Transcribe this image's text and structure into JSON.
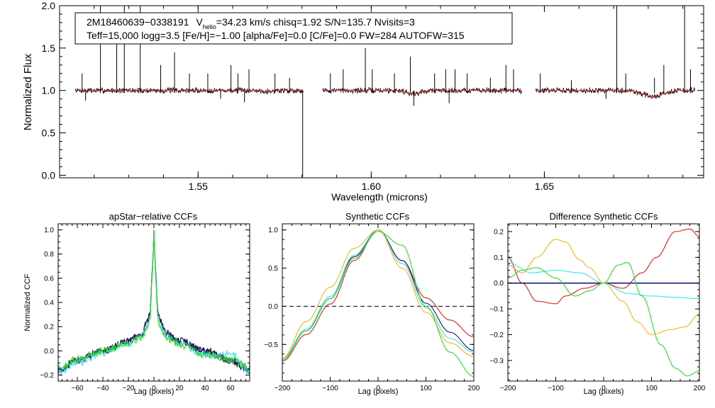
{
  "colors": {
    "axis": "#000000",
    "black": "#000000",
    "red": "#d62020",
    "navy": "#1a1a7a",
    "cyan": "#3fe0e8",
    "green": "#2ed62e",
    "orange": "#f2b41c"
  },
  "chart_data": [
    {
      "id": "spectrum",
      "type": "line",
      "title": "",
      "xlabel": "Wavelength (microns)",
      "ylabel": "Normalized Flux",
      "xlim": [
        1.51,
        1.696
      ],
      "ylim": [
        -0.03,
        2.0
      ],
      "xticks": [
        1.55,
        1.6,
        1.65
      ],
      "xtick_labels": [
        "1.55",
        "1.60",
        "1.65"
      ],
      "yticks": [
        0.0,
        0.5,
        1.0,
        1.5,
        2.0
      ],
      "ytick_labels": [
        "0.0",
        "0.5",
        "1.0",
        "1.5",
        "2.0"
      ],
      "legend": {
        "line1": {
          "star": "2M18460639−0338191",
          "v": "V",
          "vsub": "helio",
          "rest": "=34.23 km/s  chisq=1.92  S/N=135.7  Nvisits=3"
        },
        "line2": "Teff=15,000 logg=3.5 [Fe/H]=−1.00 [alpha/Fe]=0.0 [C/Fe]=0.0 FW=284 AUTOFW=315"
      },
      "segments": [
        {
          "x0": 1.5145,
          "x1": 1.5805,
          "base": 1.0,
          "dips": [
            {
              "c": 1.5705,
              "d": 0.01,
              "w": 0.002
            }
          ]
        },
        {
          "x0": 1.586,
          "x1": 1.6435,
          "base": 1.0,
          "dips": [
            {
              "c": 1.6123,
              "d": 0.04,
              "w": 0.0025
            }
          ]
        },
        {
          "x0": 1.6475,
          "x1": 1.6935,
          "base": 1.0,
          "dips": [
            {
              "c": 1.6812,
              "d": 0.07,
              "w": 0.004
            }
          ]
        }
      ],
      "spikes": [
        {
          "x": 1.5165,
          "y": 1.2
        },
        {
          "x": 1.5218,
          "y": 2.0
        },
        {
          "x": 1.5265,
          "y": 1.8
        },
        {
          "x": 1.5287,
          "y": 2.0
        },
        {
          "x": 1.5333,
          "y": 2.0
        },
        {
          "x": 1.5392,
          "y": 1.3
        },
        {
          "x": 1.5432,
          "y": 1.45
        },
        {
          "x": 1.5475,
          "y": 1.2
        },
        {
          "x": 1.5528,
          "y": 1.2
        },
        {
          "x": 1.5595,
          "y": 1.3
        },
        {
          "x": 1.5615,
          "y": 1.2
        },
        {
          "x": 1.5647,
          "y": 1.25
        },
        {
          "x": 1.5722,
          "y": 1.2
        },
        {
          "x": 1.5764,
          "y": 1.15
        },
        {
          "x": 1.5882,
          "y": 1.2
        },
        {
          "x": 1.5919,
          "y": 1.25
        },
        {
          "x": 1.5983,
          "y": 1.5
        },
        {
          "x": 1.6003,
          "y": 1.25
        },
        {
          "x": 1.6067,
          "y": 1.2
        },
        {
          "x": 1.6113,
          "y": 1.4
        },
        {
          "x": 1.6183,
          "y": 1.2
        },
        {
          "x": 1.6215,
          "y": 1.25
        },
        {
          "x": 1.6242,
          "y": 1.25
        },
        {
          "x": 1.6277,
          "y": 1.2
        },
        {
          "x": 1.6344,
          "y": 1.15
        },
        {
          "x": 1.6389,
          "y": 1.3
        },
        {
          "x": 1.6411,
          "y": 1.25
        },
        {
          "x": 1.6488,
          "y": 1.2
        },
        {
          "x": 1.6578,
          "y": 1.12
        },
        {
          "x": 1.6709,
          "y": 2.0
        },
        {
          "x": 1.6735,
          "y": 1.2
        },
        {
          "x": 1.6818,
          "y": 1.15
        },
        {
          "x": 1.6845,
          "y": 1.3
        },
        {
          "x": 1.6905,
          "y": 2.0
        },
        {
          "x": 1.6922,
          "y": 1.25
        }
      ],
      "absorptions": [
        {
          "x": 1.5175,
          "y": 0.88
        },
        {
          "x": 1.5565,
          "y": 0.9
        },
        {
          "x": 1.5634,
          "y": 0.86
        },
        {
          "x": 1.5802,
          "y": -0.02
        },
        {
          "x": 1.6123,
          "y": 0.82
        },
        {
          "x": 1.6225,
          "y": 0.85
        },
        {
          "x": 1.6678,
          "y": 0.9
        }
      ]
    },
    {
      "id": "apstar",
      "type": "line",
      "title": "apStar−relative CCFs",
      "xlabel": "Lag (pixels)",
      "ylabel": "Normalized CCF",
      "xlim": [
        -75,
        75
      ],
      "ylim": [
        -0.25,
        1.05
      ],
      "xticks": [
        -60,
        -40,
        -20,
        0,
        20,
        40,
        60
      ],
      "xtick_labels": [
        "−60",
        "−40",
        "−20",
        "0",
        "20",
        "40",
        "60"
      ],
      "yticks": [
        -0.2,
        0.0,
        0.2,
        0.4,
        0.6,
        0.8,
        1.0
      ],
      "ytick_labels": [
        "−0.2",
        "0.0",
        "0.2",
        "0.4",
        "0.6",
        "0.8",
        "1.0"
      ],
      "series": [
        {
          "name": "black",
          "color": "#000000",
          "x": [
            -75,
            -60,
            -40,
            -20,
            -10,
            -5,
            -3,
            -1,
            0,
            1,
            3,
            5,
            10,
            20,
            40,
            60,
            75
          ],
          "y": [
            -0.16,
            -0.08,
            0.0,
            0.08,
            0.14,
            0.24,
            0.34,
            0.7,
            1.0,
            0.7,
            0.34,
            0.24,
            0.14,
            0.08,
            0.0,
            -0.08,
            -0.16
          ]
        },
        {
          "name": "navy",
          "color": "#1a1a7a",
          "x": [
            -75,
            -60,
            -40,
            -20,
            -10,
            -5,
            -3,
            -1,
            0,
            1,
            3,
            5,
            10,
            20,
            40,
            60,
            75
          ],
          "y": [
            -0.16,
            -0.08,
            0.0,
            0.08,
            0.14,
            0.24,
            0.34,
            0.7,
            1.0,
            0.7,
            0.34,
            0.24,
            0.14,
            0.08,
            0.0,
            -0.08,
            -0.16
          ]
        },
        {
          "name": "cyan",
          "color": "#3fe0e8",
          "x": [
            -75,
            -60,
            -40,
            -20,
            -10,
            -5,
            -3,
            -1,
            0,
            1,
            3,
            5,
            10,
            20,
            40,
            60,
            75
          ],
          "y": [
            -0.18,
            -0.1,
            -0.02,
            0.06,
            0.12,
            0.2,
            0.3,
            0.68,
            1.0,
            0.68,
            0.3,
            0.2,
            0.12,
            0.06,
            -0.04,
            -0.02,
            -0.18
          ]
        },
        {
          "name": "green",
          "color": "#2ed62e",
          "x": [
            -75,
            -60,
            -40,
            -20,
            -10,
            -5,
            -3,
            -1,
            0,
            1,
            3,
            5,
            10,
            20,
            40,
            60,
            75
          ],
          "y": [
            -0.14,
            -0.07,
            0.0,
            0.06,
            0.11,
            0.18,
            0.28,
            0.66,
            1.0,
            0.66,
            0.28,
            0.18,
            0.1,
            0.05,
            -0.03,
            -0.07,
            -0.13
          ]
        }
      ]
    },
    {
      "id": "synthetic",
      "type": "line",
      "title": "Synthetic CCFs",
      "xlabel": "Lag (pixels)",
      "ylabel": "",
      "xlim": [
        -200,
        200
      ],
      "ylim": [
        -0.98,
        1.08
      ],
      "xticks": [
        -200,
        -100,
        0,
        100,
        200
      ],
      "xtick_labels": [
        "−200",
        "−100",
        "0",
        "100",
        "200"
      ],
      "yticks": [
        -0.5,
        0.0,
        0.5,
        1.0
      ],
      "ytick_labels": [
        "−0.5",
        "0.0",
        "0.5",
        "1.0"
      ],
      "zero_line": true,
      "series": [
        {
          "name": "red",
          "color": "#d62020",
          "x": [
            -200,
            -150,
            -100,
            -50,
            0,
            50,
            100,
            150,
            200
          ],
          "y": [
            -0.72,
            -0.37,
            0.03,
            0.6,
            1.0,
            0.6,
            0.11,
            -0.18,
            -0.4
          ]
        },
        {
          "name": "navy",
          "color": "#1a1a7a",
          "x": [
            -200,
            -150,
            -100,
            -50,
            0,
            50,
            100,
            150,
            200
          ],
          "y": [
            -0.7,
            -0.32,
            0.1,
            0.65,
            1.0,
            0.6,
            0.04,
            -0.34,
            -0.58
          ]
        },
        {
          "name": "cyan",
          "color": "#3fe0e8",
          "x": [
            -200,
            -150,
            -100,
            -50,
            0,
            50,
            100,
            150,
            200
          ],
          "y": [
            -0.68,
            -0.3,
            0.13,
            0.67,
            1.0,
            0.56,
            -0.02,
            -0.42,
            -0.6
          ]
        },
        {
          "name": "orange",
          "color": "#f2b41c",
          "x": [
            -200,
            -150,
            -100,
            -50,
            0,
            50,
            100,
            150,
            200
          ],
          "y": [
            -0.68,
            -0.2,
            0.25,
            0.76,
            1.0,
            0.5,
            -0.08,
            -0.48,
            -0.66
          ]
        },
        {
          "name": "green",
          "color": "#2ed62e",
          "x": [
            -200,
            -150,
            -100,
            -50,
            0,
            50,
            100,
            150,
            200
          ],
          "y": [
            -0.7,
            -0.32,
            0.1,
            0.63,
            0.98,
            0.8,
            0.0,
            -0.6,
            -0.92
          ]
        }
      ]
    },
    {
      "id": "difference",
      "type": "line",
      "title": "Difference Synthetic CCFs",
      "xlabel": "Lag (pixels)",
      "ylabel": "",
      "xlim": [
        -200,
        200
      ],
      "ylim": [
        -0.38,
        0.23
      ],
      "xticks": [
        -200,
        -100,
        0,
        100,
        200
      ],
      "xtick_labels": [
        "−200",
        "−100",
        "0",
        "100",
        "200"
      ],
      "yticks": [
        -0.3,
        -0.2,
        -0.1,
        0.0,
        0.1,
        0.2
      ],
      "ytick_labels": [
        "−0.3",
        "−0.2",
        "−0.1",
        "0.0",
        "0.1",
        "0.2"
      ],
      "series": [
        {
          "name": "red",
          "color": "#d62020",
          "x": [
            -200,
            -170,
            -140,
            -100,
            -80,
            -40,
            0,
            40,
            80,
            110,
            150,
            180,
            200
          ],
          "y": [
            0.1,
            0.0,
            -0.07,
            -0.08,
            -0.05,
            -0.02,
            0.0,
            -0.02,
            0.04,
            0.1,
            0.2,
            0.21,
            0.18
          ]
        },
        {
          "name": "navy",
          "color": "#1a1a7a",
          "x": [
            -200,
            200
          ],
          "y": [
            0.0,
            0.0
          ]
        },
        {
          "name": "cyan",
          "color": "#3fe0e8",
          "x": [
            -200,
            -150,
            -100,
            -50,
            0,
            50,
            100,
            150,
            200
          ],
          "y": [
            0.08,
            0.04,
            0.05,
            0.04,
            0.0,
            -0.04,
            -0.05,
            -0.055,
            -0.06
          ]
        },
        {
          "name": "orange",
          "color": "#f2b41c",
          "x": [
            -200,
            -170,
            -140,
            -100,
            -80,
            -50,
            -30,
            0,
            40,
            70,
            100,
            140,
            170,
            200
          ],
          "y": [
            0.07,
            0.04,
            0.1,
            0.17,
            0.16,
            0.09,
            0.06,
            0.0,
            -0.07,
            -0.15,
            -0.2,
            -0.18,
            -0.17,
            -0.12
          ]
        },
        {
          "name": "green",
          "color": "#2ed62e",
          "x": [
            -200,
            -170,
            -140,
            -100,
            -60,
            -30,
            0,
            30,
            50,
            80,
            120,
            150,
            175,
            200
          ],
          "y": [
            0.02,
            0.05,
            0.06,
            0.02,
            -0.05,
            -0.03,
            0.0,
            0.07,
            0.08,
            -0.05,
            -0.24,
            -0.33,
            -0.36,
            -0.34
          ]
        }
      ]
    }
  ]
}
